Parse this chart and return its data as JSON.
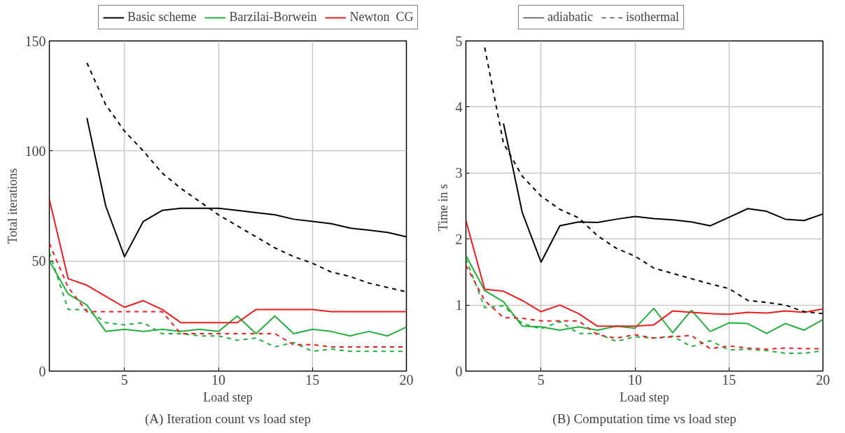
{
  "chart_data": [
    {
      "type": "line",
      "title": "(A) Iteration count vs load step",
      "xlabel": "Load step",
      "ylabel": "Total iterations",
      "x": [
        1,
        2,
        3,
        4,
        5,
        6,
        7,
        8,
        9,
        10,
        11,
        12,
        13,
        14,
        15,
        16,
        17,
        18,
        19,
        20
      ],
      "xlim": [
        1,
        20
      ],
      "xticks": [
        5,
        10,
        15,
        20
      ],
      "ylim": [
        0,
        150
      ],
      "yticks": [
        0,
        50,
        100,
        150
      ],
      "grid": true,
      "legend": "top",
      "annotations": [
        "adiabatic",
        "isothermal"
      ],
      "series": [
        {
          "name": "Basic scheme",
          "color": "#000000",
          "line_style": "solid",
          "values": [
            null,
            null,
            115,
            75,
            52,
            68,
            73,
            74,
            74,
            74,
            73,
            72,
            71,
            69,
            68,
            67,
            65,
            64,
            63,
            61
          ]
        },
        {
          "name": "Barzilai-Borwein",
          "color": "#22b03c",
          "line_style": "solid",
          "values": [
            50,
            35,
            30,
            18,
            19,
            18,
            19,
            18,
            19,
            18,
            25,
            17,
            25,
            17,
            19,
            18,
            16,
            18,
            16,
            20
          ]
        },
        {
          "name": "Newton  CG",
          "color": "#ee1c1c",
          "line_style": "solid",
          "values": [
            78,
            42,
            39,
            34,
            29,
            32,
            28,
            22,
            22,
            22,
            22,
            28,
            28,
            28,
            28,
            27,
            27,
            27,
            27,
            27
          ]
        },
        {
          "color": "#000000",
          "line_style": "dashed",
          "values": [
            null,
            null,
            140,
            121,
            109,
            100,
            90,
            83,
            77,
            71,
            66,
            61,
            56,
            52,
            49,
            45,
            43,
            40,
            38,
            36
          ]
        },
        {
          "color": "#22b03c",
          "line_style": "dashed",
          "values": [
            54,
            28,
            28,
            22,
            21,
            22,
            17,
            17,
            16,
            16,
            14,
            15,
            11,
            13,
            9,
            10,
            9,
            9,
            9,
            9
          ]
        },
        {
          "color": "#ee1c1c",
          "line_style": "dashed",
          "values": [
            58,
            38,
            27,
            27,
            27,
            27,
            27,
            17,
            17,
            17,
            17,
            17,
            17,
            12,
            12,
            11,
            11,
            11,
            11,
            11
          ]
        }
      ]
    },
    {
      "type": "line",
      "title": "(B) Computation time vs load step",
      "xlabel": "Load step",
      "ylabel": "Time  in s",
      "x": [
        1,
        2,
        3,
        4,
        5,
        6,
        7,
        8,
        9,
        10,
        11,
        12,
        13,
        14,
        15,
        16,
        17,
        18,
        19,
        20
      ],
      "xlim": [
        1,
        20
      ],
      "xticks": [
        5,
        10,
        15,
        20
      ],
      "ylim": [
        0,
        5
      ],
      "yticks": [
        0,
        1,
        2,
        3,
        4,
        5
      ],
      "grid": true,
      "series": [
        {
          "color": "#000000",
          "line_style": "solid",
          "values": [
            null,
            null,
            3.75,
            2.4,
            1.65,
            2.2,
            2.26,
            2.25,
            2.3,
            2.34,
            2.31,
            2.29,
            2.26,
            2.2,
            2.33,
            2.46,
            2.42,
            2.3,
            2.28,
            2.38
          ]
        },
        {
          "color": "#22b03c",
          "line_style": "solid",
          "values": [
            1.75,
            1.22,
            1.05,
            0.68,
            0.67,
            0.62,
            0.67,
            0.62,
            0.68,
            0.65,
            0.95,
            0.58,
            0.92,
            0.6,
            0.73,
            0.72,
            0.57,
            0.72,
            0.62,
            0.78
          ]
        },
        {
          "color": "#ee1c1c",
          "line_style": "solid",
          "values": [
            2.28,
            1.24,
            1.21,
            1.07,
            0.9,
            1.0,
            0.87,
            0.68,
            0.68,
            0.68,
            0.7,
            0.91,
            0.89,
            0.87,
            0.86,
            0.89,
            0.88,
            0.91,
            0.89,
            0.94
          ]
        },
        {
          "color": "#000000",
          "line_style": "dashed",
          "values": [
            null,
            4.9,
            3.45,
            2.95,
            2.65,
            2.45,
            2.32,
            2.05,
            1.86,
            1.74,
            1.56,
            1.48,
            1.4,
            1.32,
            1.25,
            1.07,
            1.04,
            1.0,
            0.9,
            0.87
          ]
        },
        {
          "color": "#22b03c",
          "line_style": "dashed",
          "values": [
            1.7,
            0.96,
            0.99,
            0.72,
            0.64,
            0.75,
            0.57,
            0.57,
            0.45,
            0.52,
            0.5,
            0.53,
            0.37,
            0.46,
            0.32,
            0.33,
            0.31,
            0.27,
            0.27,
            0.31
          ]
        },
        {
          "color": "#ee1c1c",
          "line_style": "dashed",
          "values": [
            1.6,
            1.07,
            0.81,
            0.8,
            0.76,
            0.76,
            0.76,
            0.55,
            0.5,
            0.55,
            0.5,
            0.52,
            0.54,
            0.34,
            0.38,
            0.35,
            0.33,
            0.35,
            0.34,
            0.34
          ]
        }
      ]
    }
  ]
}
